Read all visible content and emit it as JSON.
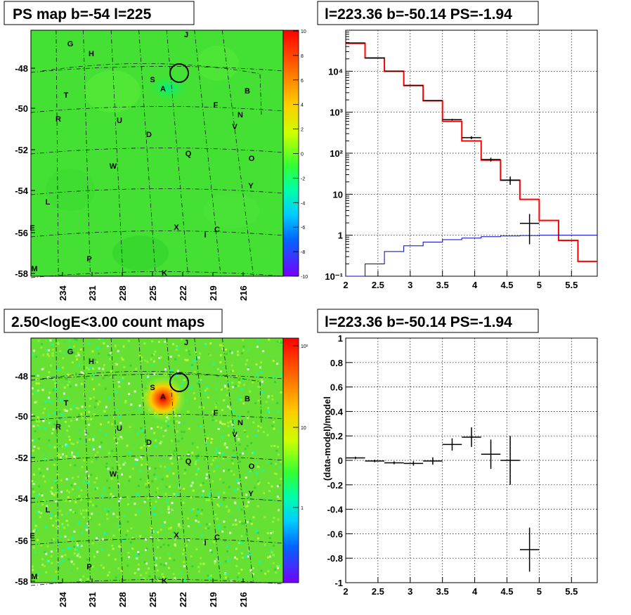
{
  "panels": {
    "top_left_title": "PS map b=-54 l=225",
    "top_right_title": "l=223.36 b=-50.14 PS=-1.94",
    "bottom_left_title": "2.50<logE<3.00 count maps",
    "bottom_right_title": "l=223.36 b=-50.14 PS=-1.94",
    "bottom_right_ylabel": "(data-model)/model"
  },
  "map": {
    "lat_ticks": [
      "-48",
      "-50",
      "-52",
      "-54",
      "-56",
      "-58"
    ],
    "lon_ticks": [
      "234",
      "231",
      "228",
      "225",
      "222",
      "219",
      "216"
    ],
    "source_labels": [
      "G",
      "H",
      "J",
      "S",
      "A",
      "B",
      "T",
      "F",
      "N",
      "R",
      "U",
      "V",
      "D",
      "Q",
      "O",
      "W",
      "Y",
      "L",
      "E",
      "X",
      "I",
      "C",
      "P",
      "M",
      "K"
    ],
    "ps_colorbar_ticks": [
      "10",
      "8",
      "6",
      "4",
      "2",
      "0",
      "-2",
      "-4",
      "-6",
      "-8",
      "-10"
    ],
    "count_colorbar_ticks": [
      "10²",
      "10",
      "1"
    ]
  },
  "chart_data": [
    {
      "type": "step",
      "title": "l=223.36 b=-50.14 PS=-1.94",
      "xlabel": "",
      "ylabel": "",
      "xlim": [
        2,
        5.9
      ],
      "ylim": [
        0.1,
        100000
      ],
      "yscale": "log",
      "x_ticks": [
        "2",
        "2.5",
        "3",
        "3.5",
        "4",
        "4.5",
        "5",
        "5.5"
      ],
      "y_ticks": [
        "10⁻¹",
        "1",
        "10",
        "10²",
        "10³",
        "10⁴"
      ],
      "grid": true,
      "bin_edges": [
        2.0,
        2.3,
        2.6,
        2.9,
        3.2,
        3.5,
        3.8,
        4.1,
        4.4,
        4.7,
        5.0,
        5.3,
        5.6,
        5.9
      ],
      "series": [
        {
          "color": "#ff0000",
          "values": [
            48000,
            21000,
            10000,
            4500,
            1900,
            600,
            200,
            68,
            22,
            7.5,
            2.3,
            0.75,
            0.23
          ]
        },
        {
          "color": "#0000cc",
          "values": [
            0.1,
            0.2,
            0.4,
            0.55,
            0.68,
            0.78,
            0.85,
            0.92,
            0.96,
            0.98,
            1.0,
            1.0,
            1.0
          ]
        },
        {
          "color": "#000000",
          "kind": "errorbar",
          "x": [
            2.15,
            2.45,
            2.75,
            3.05,
            3.35,
            3.65,
            3.95,
            4.25,
            4.55,
            4.85
          ],
          "y": [
            49000,
            21000,
            10000,
            4500,
            1920,
            660,
            240,
            70,
            22,
            1.95
          ],
          "yerr_low": [
            400,
            250,
            150,
            90,
            55,
            30,
            20,
            8,
            5,
            1.35
          ],
          "yerr_high": [
            400,
            250,
            150,
            90,
            55,
            30,
            20,
            8,
            5,
            1.35
          ]
        }
      ]
    },
    {
      "type": "scatter",
      "title": "l=223.36 b=-50.14 PS=-1.94",
      "xlabel": "",
      "ylabel": "(data-model)/model",
      "xlim": [
        2,
        5.9
      ],
      "ylim": [
        -1,
        1
      ],
      "x_ticks": [
        "2",
        "2.5",
        "3",
        "3.5",
        "4",
        "4.5",
        "5",
        "5.5"
      ],
      "y_ticks": [
        "-1",
        "-0.8",
        "-0.6",
        "-0.4",
        "-0.2",
        "0",
        "0.2",
        "0.4",
        "0.6",
        "0.8",
        "1"
      ],
      "grid": true,
      "x": [
        2.15,
        2.45,
        2.75,
        3.05,
        3.35,
        3.65,
        3.95,
        4.25,
        4.55,
        4.85
      ],
      "y": [
        0.02,
        -0.005,
        -0.02,
        -0.025,
        -0.005,
        0.13,
        0.19,
        0.05,
        0.0,
        -0.73
      ],
      "yerr": [
        0.01,
        0.01,
        0.012,
        0.018,
        0.03,
        0.05,
        0.08,
        0.12,
        0.2,
        0.18
      ],
      "xerr": [
        0.15,
        0.15,
        0.15,
        0.15,
        0.15,
        0.15,
        0.15,
        0.15,
        0.15,
        0.15
      ]
    }
  ]
}
